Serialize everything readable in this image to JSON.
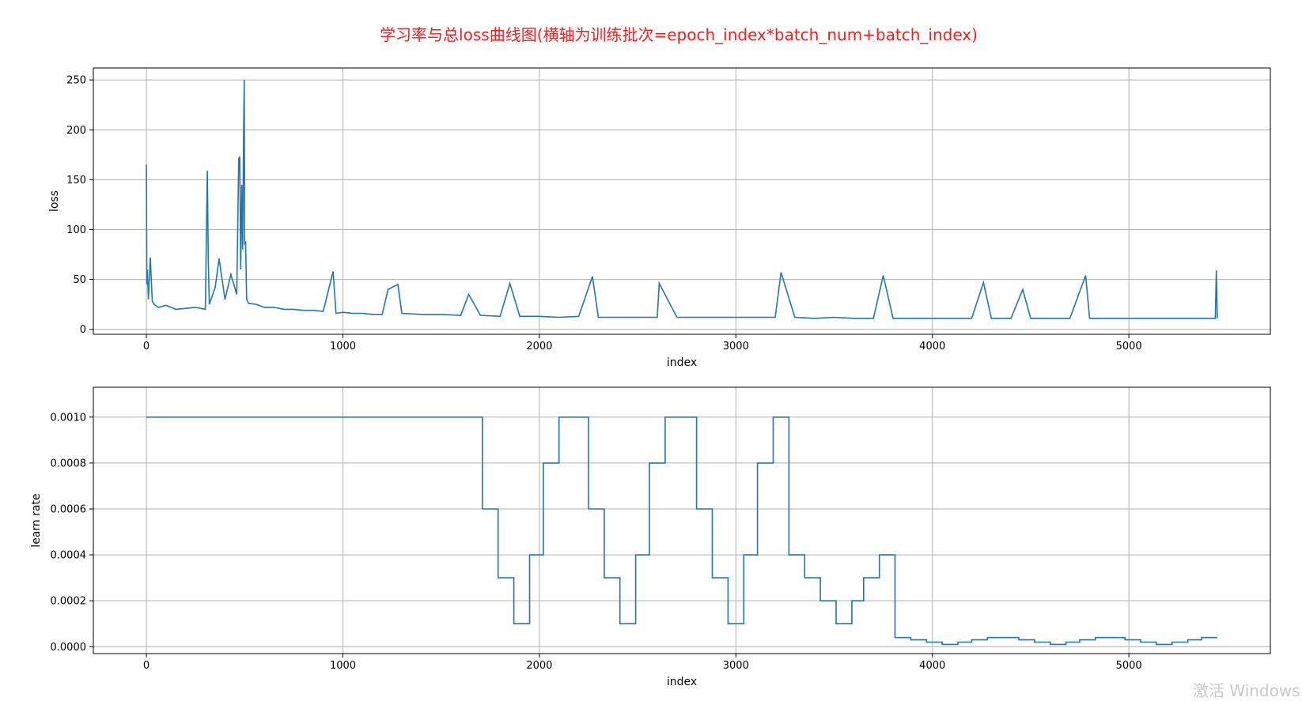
{
  "title": "学习率与总loss曲线图(横轴为训练批次=epoch_index*batch_num+batch_index)",
  "watermark": "激活 Windows",
  "colors": {
    "line": "#1f77b4",
    "title": "#ff1a1a",
    "grid": "#b0b0b0"
  },
  "chart_data": [
    {
      "type": "line",
      "xlabel": "index",
      "ylabel": "loss",
      "xlim": [
        -270,
        5720
      ],
      "ylim": [
        -5,
        262
      ],
      "xticks": [
        0,
        1000,
        2000,
        3000,
        4000,
        5000
      ],
      "yticks": [
        0,
        50,
        100,
        150,
        200,
        250
      ],
      "grid": true,
      "series": [
        {
          "x": [
            0,
            2,
            5,
            10,
            20,
            30,
            40,
            60,
            100,
            150,
            200,
            250,
            300,
            310,
            315,
            320,
            350,
            370,
            400,
            430,
            460,
            470,
            475,
            480,
            485,
            490,
            495,
            498,
            500,
            505,
            510,
            520,
            560,
            600,
            650,
            700,
            750,
            800,
            850,
            900,
            950,
            965,
            1000,
            1050,
            1100,
            1150,
            1200,
            1230,
            1280,
            1300,
            1400,
            1500,
            1600,
            1640,
            1700,
            1800,
            1850,
            1900,
            2000,
            2100,
            2200,
            2270,
            2300,
            2400,
            2500,
            2600,
            2610,
            2700,
            2800,
            2900,
            3000,
            3100,
            3200,
            3230,
            3300,
            3400,
            3500,
            3600,
            3700,
            3750,
            3800,
            3900,
            4000,
            4100,
            4200,
            4260,
            4300,
            4400,
            4460,
            4500,
            4600,
            4700,
            4780,
            4800,
            4900,
            5000,
            5100,
            5200,
            5300,
            5400,
            5440,
            5445,
            5450
          ],
          "y": [
            165,
            45,
            60,
            30,
            72,
            28,
            25,
            22,
            24,
            20,
            21,
            22,
            20,
            159,
            70,
            25,
            42,
            71,
            30,
            55,
            35,
            171,
            173,
            60,
            145,
            80,
            200,
            250,
            85,
            88,
            30,
            26,
            25,
            22,
            22,
            20,
            20,
            19,
            19,
            18,
            58,
            16,
            17,
            16,
            16,
            15,
            15,
            40,
            45,
            16,
            15,
            15,
            14,
            35,
            14,
            13,
            46,
            13,
            13,
            12,
            13,
            53,
            12,
            12,
            12,
            12,
            46,
            12,
            12,
            12,
            12,
            12,
            12,
            57,
            12,
            11,
            12,
            11,
            11,
            54,
            11,
            11,
            11,
            11,
            11,
            47,
            11,
            11,
            40,
            11,
            11,
            11,
            54,
            11,
            11,
            11,
            11,
            11,
            11,
            11,
            11,
            59,
            11
          ]
        }
      ]
    },
    {
      "type": "line",
      "step": true,
      "xlabel": "index",
      "ylabel": "learn rate",
      "xlim": [
        -270,
        5720
      ],
      "ylim": [
        -3e-05,
        0.00113
      ],
      "xticks": [
        0,
        1000,
        2000,
        3000,
        4000,
        5000
      ],
      "yticks": [
        0.0,
        0.0002,
        0.0004,
        0.0006,
        0.0008,
        0.001
      ],
      "ytick_labels": [
        "0.0000",
        "0.0002",
        "0.0004",
        "0.0006",
        "0.0008",
        "0.0010"
      ],
      "grid": true,
      "series": [
        {
          "x": [
            0,
            1710,
            1790,
            1870,
            1950,
            2020,
            2100,
            2250,
            2330,
            2410,
            2490,
            2560,
            2640,
            2800,
            2880,
            2960,
            3040,
            3110,
            3190,
            3270,
            3350,
            3430,
            3510,
            3590,
            3650,
            3730,
            3810,
            3890,
            3970,
            4050,
            4130,
            4200,
            4280,
            4440,
            4520,
            4600,
            4680,
            4750,
            4830,
            4980,
            5060,
            5140,
            5220,
            5300,
            5370,
            5450
          ],
          "y": [
            0.001,
            0.0006,
            0.0003,
            0.0001,
            0.0004,
            0.0008,
            0.001,
            0.0006,
            0.0003,
            0.0001,
            0.0004,
            0.0008,
            0.001,
            0.0006,
            0.0003,
            0.0001,
            0.0004,
            0.0008,
            0.001,
            0.0004,
            0.0003,
            0.0002,
            0.0001,
            0.0002,
            0.0003,
            0.0004,
            4e-05,
            3e-05,
            2e-05,
            1e-05,
            2e-05,
            3e-05,
            4e-05,
            3e-05,
            2e-05,
            1e-05,
            2e-05,
            3e-05,
            4e-05,
            3e-05,
            2e-05,
            1e-05,
            2e-05,
            3e-05,
            4e-05,
            4e-05
          ]
        }
      ]
    }
  ]
}
